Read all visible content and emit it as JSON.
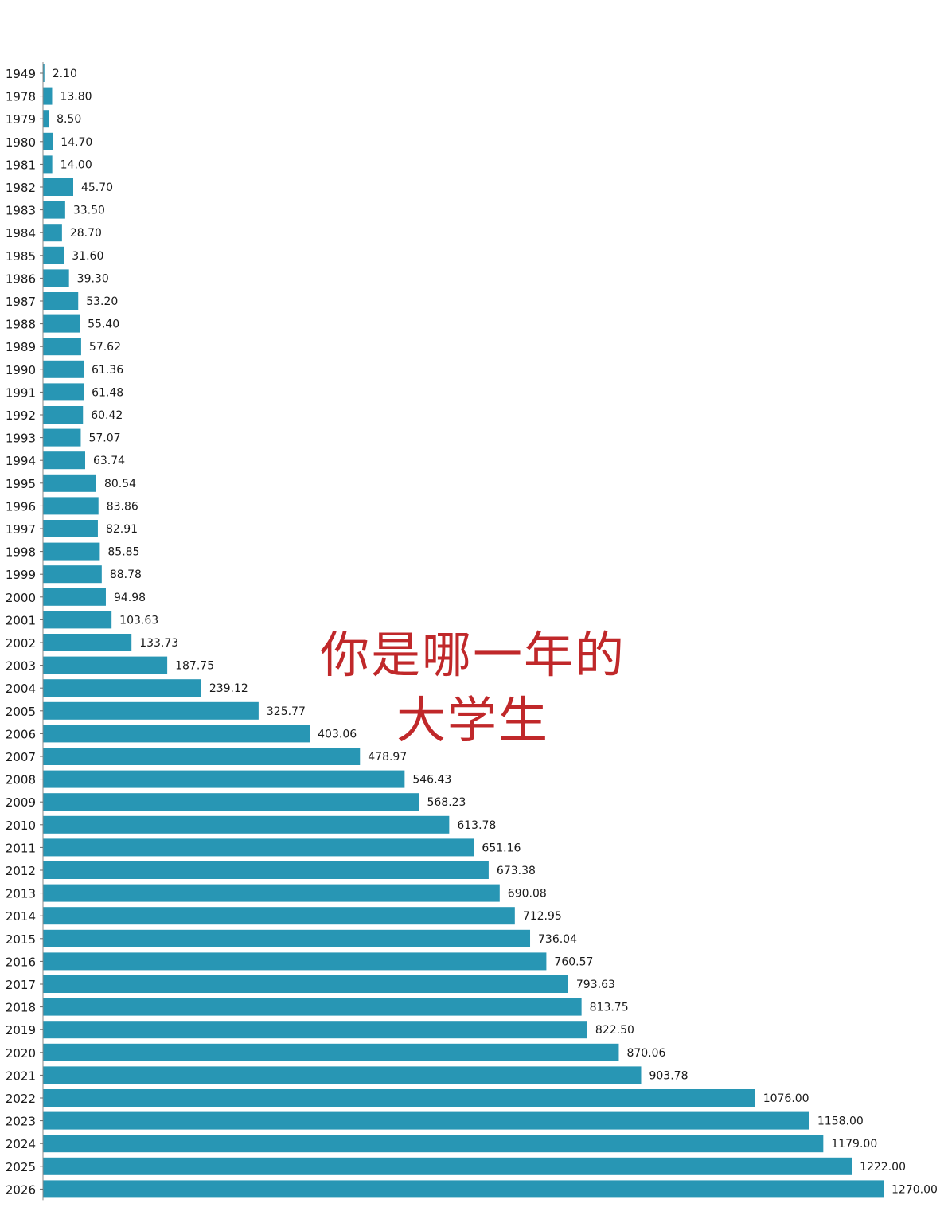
{
  "chart_data": {
    "type": "bar",
    "orientation": "horizontal",
    "title_lines": [
      "你是哪一年的",
      "大学生"
    ],
    "xlabel": "",
    "ylabel": "",
    "xlim": [
      0,
      1270
    ],
    "grid": false,
    "legend": "none",
    "bar_color": "#2896b4",
    "title_color": "#c0282a",
    "categories": [
      "1949",
      "1978",
      "1979",
      "1980",
      "1981",
      "1982",
      "1983",
      "1984",
      "1985",
      "1986",
      "1987",
      "1988",
      "1989",
      "1990",
      "1991",
      "1992",
      "1993",
      "1994",
      "1995",
      "1996",
      "1997",
      "1998",
      "1999",
      "2000",
      "2001",
      "2002",
      "2003",
      "2004",
      "2005",
      "2006",
      "2007",
      "2008",
      "2009",
      "2010",
      "2011",
      "2012",
      "2013",
      "2014",
      "2015",
      "2016",
      "2017",
      "2018",
      "2019",
      "2020",
      "2021",
      "2022",
      "2023",
      "2024",
      "2025",
      "2026"
    ],
    "values": [
      2.1,
      13.8,
      8.5,
      14.7,
      14.0,
      45.7,
      33.5,
      28.7,
      31.6,
      39.3,
      53.2,
      55.4,
      57.62,
      61.36,
      61.48,
      60.42,
      57.07,
      63.74,
      80.54,
      83.86,
      82.91,
      85.85,
      88.78,
      94.98,
      103.63,
      133.73,
      187.75,
      239.12,
      325.77,
      403.06,
      478.97,
      546.43,
      568.23,
      613.78,
      651.16,
      673.38,
      690.08,
      712.95,
      736.04,
      760.57,
      793.63,
      813.75,
      822.5,
      870.06,
      903.78,
      1076.0,
      1158.0,
      1179.0,
      1222.0,
      1270.0
    ],
    "value_labels": [
      "2.10",
      "13.80",
      "8.50",
      "14.70",
      "14.00",
      "45.70",
      "33.50",
      "28.70",
      "31.60",
      "39.30",
      "53.20",
      "55.40",
      "57.62",
      "61.36",
      "61.48",
      "60.42",
      "57.07",
      "63.74",
      "80.54",
      "83.86",
      "82.91",
      "85.85",
      "88.78",
      "94.98",
      "103.63",
      "133.73",
      "187.75",
      "239.12",
      "325.77",
      "403.06",
      "478.97",
      "546.43",
      "568.23",
      "613.78",
      "651.16",
      "673.38",
      "690.08",
      "712.95",
      "736.04",
      "760.57",
      "793.63",
      "813.75",
      "822.50",
      "870.06",
      "903.78",
      "1076.00",
      "1158.00",
      "1179.00",
      "1222.00",
      "1270.00"
    ]
  }
}
